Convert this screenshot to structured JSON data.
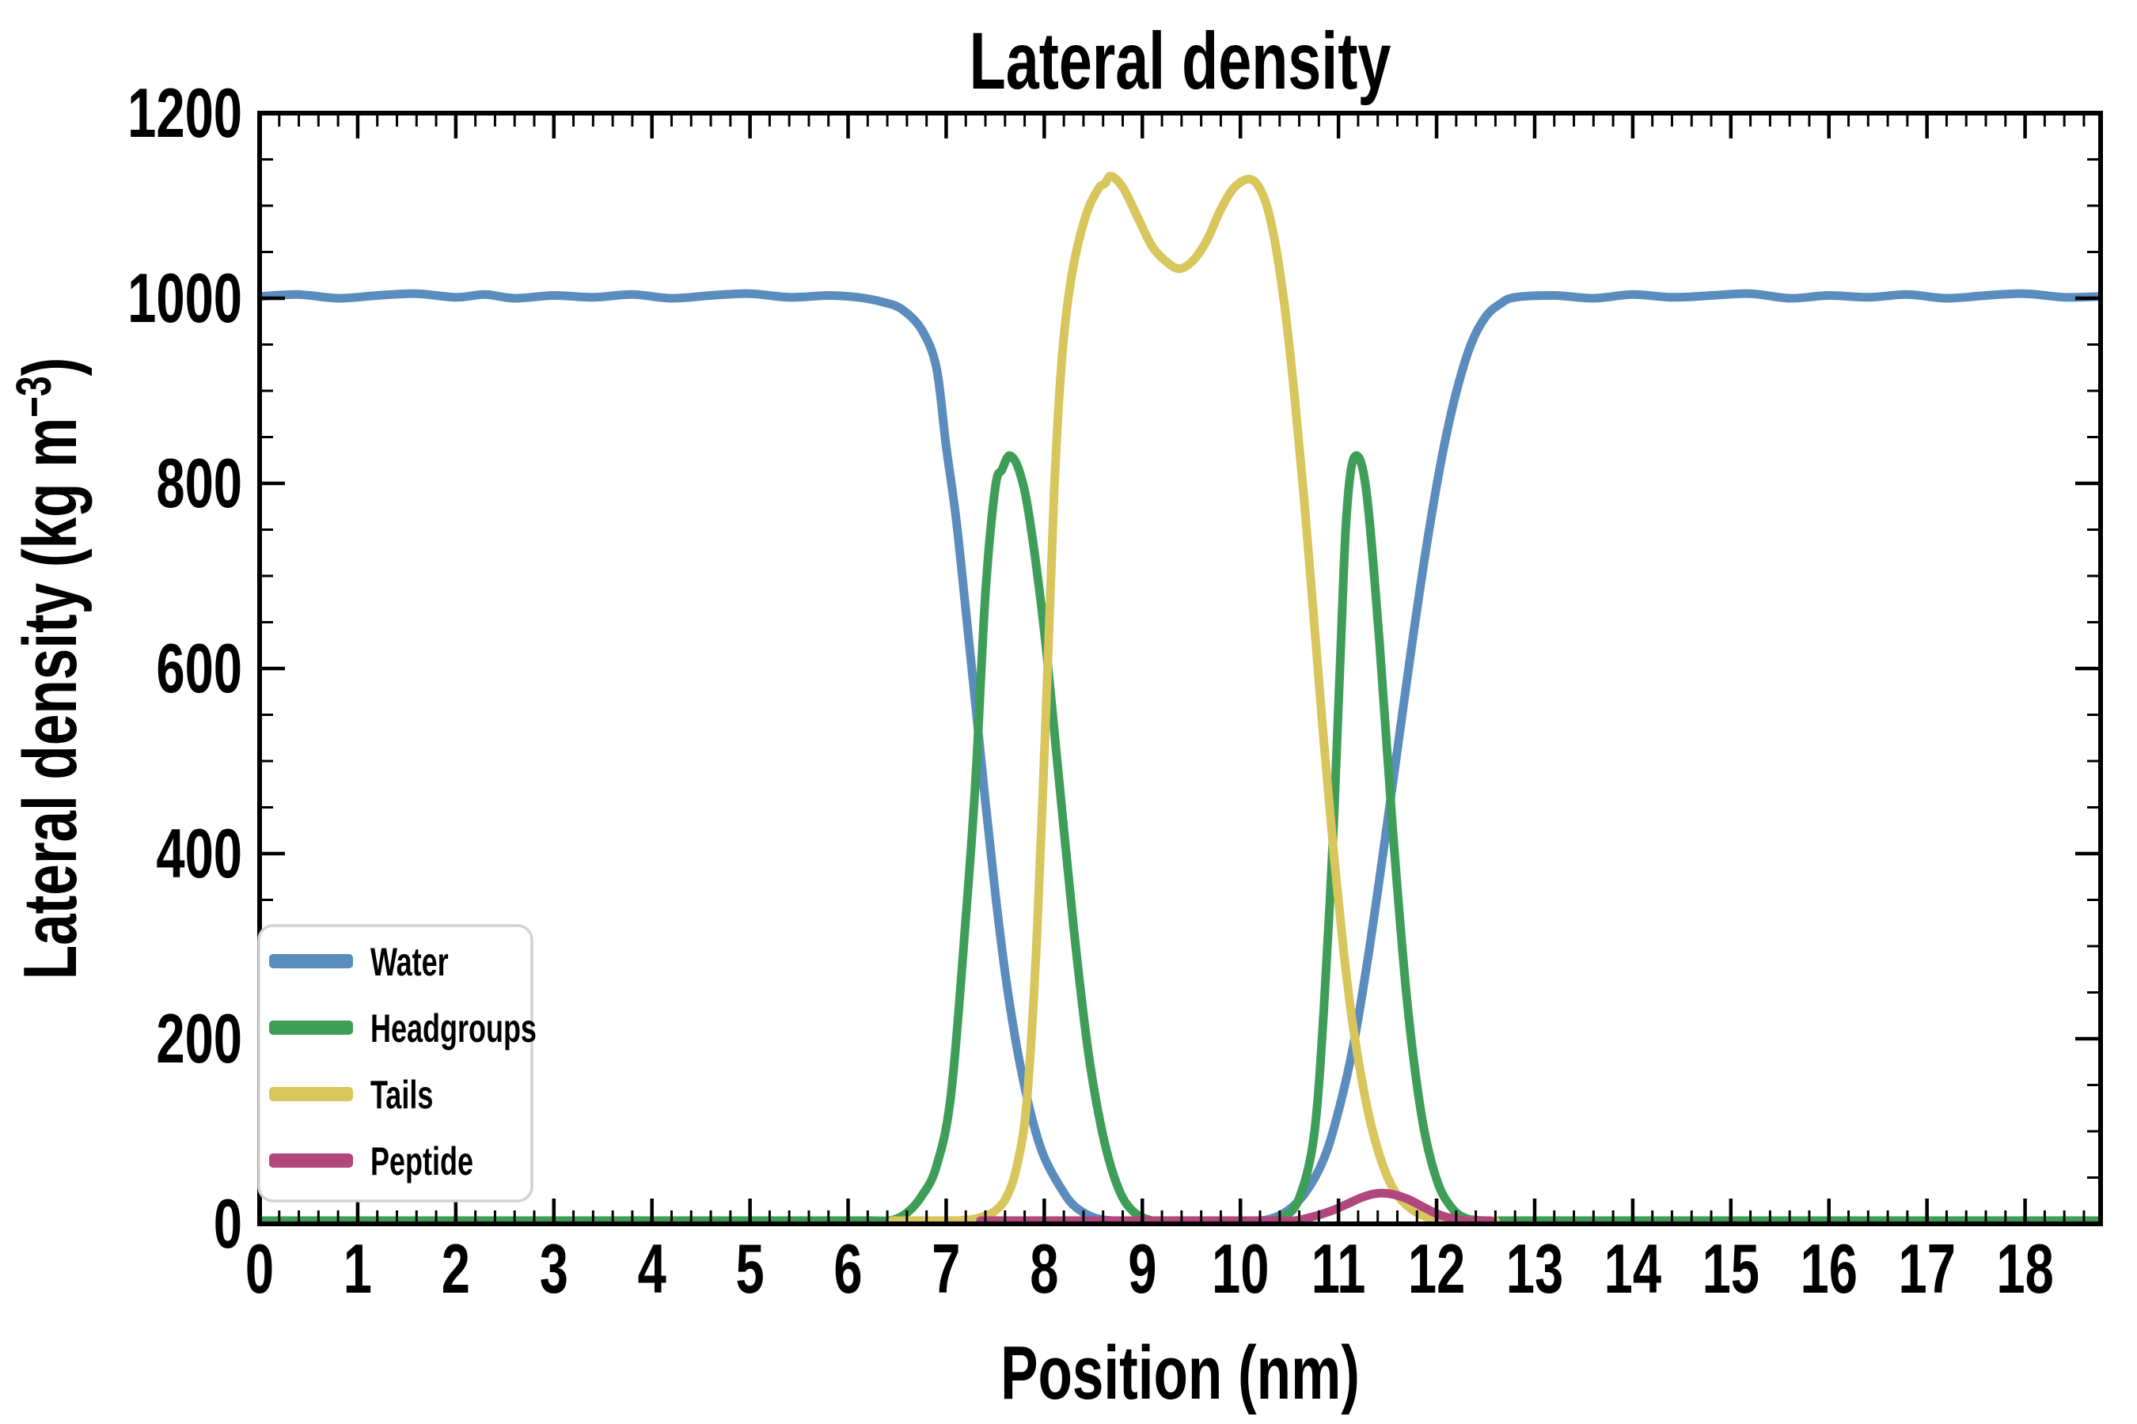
{
  "chart_data": {
    "type": "line",
    "title": "Lateral density",
    "xlabel": "Position (nm)",
    "ylabel": "Lateral density (kg m−3)",
    "ylabel_parts": {
      "prefix": "Lateral density (kg m",
      "sup": "−3",
      "suffix": ")"
    },
    "xlim": [
      0,
      18.77
    ],
    "ylim": [
      0,
      1200
    ],
    "x_major_ticks": [
      0,
      1,
      2,
      3,
      4,
      5,
      6,
      7,
      8,
      9,
      10,
      11,
      12,
      13,
      14,
      15,
      16,
      17,
      18
    ],
    "x_minor_step": 0.2,
    "y_major_ticks": [
      0,
      200,
      400,
      600,
      800,
      1000,
      1200
    ],
    "y_minor_step": 50,
    "grid": false,
    "background": "#ffffff",
    "axis_color": "#000000",
    "legend_position": "lower left",
    "series": [
      {
        "name": "Water",
        "color": "#5b8cbe",
        "points": [
          [
            0,
            1002
          ],
          [
            0.4,
            1004
          ],
          [
            0.8,
            1000
          ],
          [
            1.2,
            1003
          ],
          [
            1.6,
            1005
          ],
          [
            2.0,
            1001
          ],
          [
            2.3,
            1004
          ],
          [
            2.6,
            1000
          ],
          [
            3.0,
            1003
          ],
          [
            3.4,
            1001
          ],
          [
            3.8,
            1004
          ],
          [
            4.2,
            1000
          ],
          [
            4.6,
            1003
          ],
          [
            5.0,
            1005
          ],
          [
            5.4,
            1001
          ],
          [
            5.8,
            1003
          ],
          [
            6.1,
            1001
          ],
          [
            6.35,
            996
          ],
          [
            6.55,
            988
          ],
          [
            6.75,
            966
          ],
          [
            6.9,
            925
          ],
          [
            7.0,
            840
          ],
          [
            7.1,
            763
          ],
          [
            7.2,
            663
          ],
          [
            7.3,
            560
          ],
          [
            7.4,
            456
          ],
          [
            7.5,
            358
          ],
          [
            7.6,
            272
          ],
          [
            7.7,
            203
          ],
          [
            7.8,
            148
          ],
          [
            7.9,
            104
          ],
          [
            8.0,
            72
          ],
          [
            8.15,
            42
          ],
          [
            8.3,
            20
          ],
          [
            8.5,
            7
          ],
          [
            8.7,
            2
          ],
          [
            9.0,
            0
          ],
          [
            9.5,
            0
          ],
          [
            10.05,
            0
          ],
          [
            10.25,
            4
          ],
          [
            10.45,
            12
          ],
          [
            10.65,
            32
          ],
          [
            10.85,
            70
          ],
          [
            11.0,
            122
          ],
          [
            11.15,
            192
          ],
          [
            11.3,
            287
          ],
          [
            11.45,
            397
          ],
          [
            11.6,
            512
          ],
          [
            11.75,
            627
          ],
          [
            11.9,
            734
          ],
          [
            12.05,
            826
          ],
          [
            12.2,
            898
          ],
          [
            12.35,
            950
          ],
          [
            12.5,
            980
          ],
          [
            12.65,
            994
          ],
          [
            12.8,
            1001
          ],
          [
            13.2,
            1003
          ],
          [
            13.6,
            1000
          ],
          [
            14.0,
            1004
          ],
          [
            14.4,
            1001
          ],
          [
            14.8,
            1003
          ],
          [
            15.2,
            1005
          ],
          [
            15.6,
            1000
          ],
          [
            16.0,
            1003
          ],
          [
            16.4,
            1001
          ],
          [
            16.8,
            1004
          ],
          [
            17.2,
            1000
          ],
          [
            17.6,
            1003
          ],
          [
            18.0,
            1005
          ],
          [
            18.4,
            1001
          ],
          [
            18.77,
            1002
          ]
        ]
      },
      {
        "name": "Headgroups",
        "color": "#3e9e57",
        "points": [
          [
            0,
            0
          ],
          [
            2,
            0
          ],
          [
            4,
            0
          ],
          [
            5.5,
            0
          ],
          [
            6.0,
            0
          ],
          [
            6.25,
            1
          ],
          [
            6.45,
            4
          ],
          [
            6.6,
            12
          ],
          [
            6.75,
            30
          ],
          [
            6.9,
            62
          ],
          [
            7.05,
            140
          ],
          [
            7.2,
            330
          ],
          [
            7.3,
            480
          ],
          [
            7.4,
            680
          ],
          [
            7.5,
            795
          ],
          [
            7.57,
            815
          ],
          [
            7.65,
            830
          ],
          [
            7.75,
            812
          ],
          [
            7.85,
            762
          ],
          [
            8.0,
            640
          ],
          [
            8.15,
            480
          ],
          [
            8.3,
            320
          ],
          [
            8.45,
            185
          ],
          [
            8.6,
            95
          ],
          [
            8.75,
            40
          ],
          [
            8.9,
            14
          ],
          [
            9.1,
            3
          ],
          [
            9.35,
            0
          ],
          [
            9.8,
            0
          ],
          [
            10.1,
            0
          ],
          [
            10.3,
            2
          ],
          [
            10.45,
            8
          ],
          [
            10.6,
            28
          ],
          [
            10.75,
            95
          ],
          [
            10.85,
            230
          ],
          [
            10.95,
            430
          ],
          [
            11.02,
            615
          ],
          [
            11.08,
            762
          ],
          [
            11.16,
            828
          ],
          [
            11.28,
            795
          ],
          [
            11.42,
            625
          ],
          [
            11.55,
            430
          ],
          [
            11.7,
            240
          ],
          [
            11.85,
            115
          ],
          [
            12.0,
            48
          ],
          [
            12.15,
            18
          ],
          [
            12.3,
            6
          ],
          [
            12.5,
            1
          ],
          [
            12.7,
            0
          ],
          [
            13.5,
            0
          ],
          [
            15,
            0
          ],
          [
            17,
            0
          ],
          [
            18.77,
            0
          ]
        ]
      },
      {
        "name": "Tails",
        "color": "#d8c55c",
        "points": [
          [
            6.45,
            0
          ],
          [
            6.7,
            1
          ],
          [
            7.0,
            2
          ],
          [
            7.2,
            4
          ],
          [
            7.35,
            7
          ],
          [
            7.5,
            14
          ],
          [
            7.62,
            30
          ],
          [
            7.72,
            62
          ],
          [
            7.82,
            130
          ],
          [
            7.92,
            300
          ],
          [
            8.02,
            560
          ],
          [
            8.1,
            790
          ],
          [
            8.18,
            935
          ],
          [
            8.28,
            1025
          ],
          [
            8.42,
            1088
          ],
          [
            8.55,
            1118
          ],
          [
            8.62,
            1124
          ],
          [
            8.68,
            1132
          ],
          [
            8.8,
            1120
          ],
          [
            8.95,
            1088
          ],
          [
            9.1,
            1056
          ],
          [
            9.25,
            1039
          ],
          [
            9.38,
            1032
          ],
          [
            9.52,
            1041
          ],
          [
            9.66,
            1063
          ],
          [
            9.8,
            1096
          ],
          [
            9.95,
            1121
          ],
          [
            10.12,
            1128
          ],
          [
            10.25,
            1106
          ],
          [
            10.35,
            1062
          ],
          [
            10.45,
            992
          ],
          [
            10.55,
            896
          ],
          [
            10.65,
            782
          ],
          [
            10.75,
            652
          ],
          [
            10.85,
            522
          ],
          [
            10.95,
            402
          ],
          [
            11.05,
            297
          ],
          [
            11.15,
            212
          ],
          [
            11.3,
            122
          ],
          [
            11.45,
            64
          ],
          [
            11.6,
            31
          ],
          [
            11.8,
            12
          ],
          [
            12.0,
            5
          ],
          [
            12.25,
            2
          ],
          [
            12.6,
            0
          ]
        ]
      },
      {
        "name": "Peptide",
        "color": "#b2477e",
        "points": [
          [
            7.35,
            0
          ],
          [
            7.7,
            1
          ],
          [
            8.1,
            2
          ],
          [
            8.5,
            2
          ],
          [
            8.85,
            1
          ],
          [
            9.2,
            0
          ],
          [
            9.7,
            0
          ],
          [
            10.1,
            0
          ],
          [
            10.35,
            1
          ],
          [
            10.55,
            3
          ],
          [
            10.75,
            8
          ],
          [
            10.95,
            15
          ],
          [
            11.1,
            22
          ],
          [
            11.25,
            29
          ],
          [
            11.4,
            33
          ],
          [
            11.55,
            32
          ],
          [
            11.7,
            27
          ],
          [
            11.85,
            19
          ],
          [
            12.0,
            11
          ],
          [
            12.15,
            6
          ],
          [
            12.3,
            3
          ],
          [
            12.45,
            1
          ],
          [
            12.55,
            0
          ]
        ]
      }
    ]
  },
  "legend": {
    "border_color": "#d2d2d2",
    "fill": "#ffffff",
    "labels": [
      "Water",
      "Headgroups",
      "Tails",
      "Peptide"
    ]
  }
}
